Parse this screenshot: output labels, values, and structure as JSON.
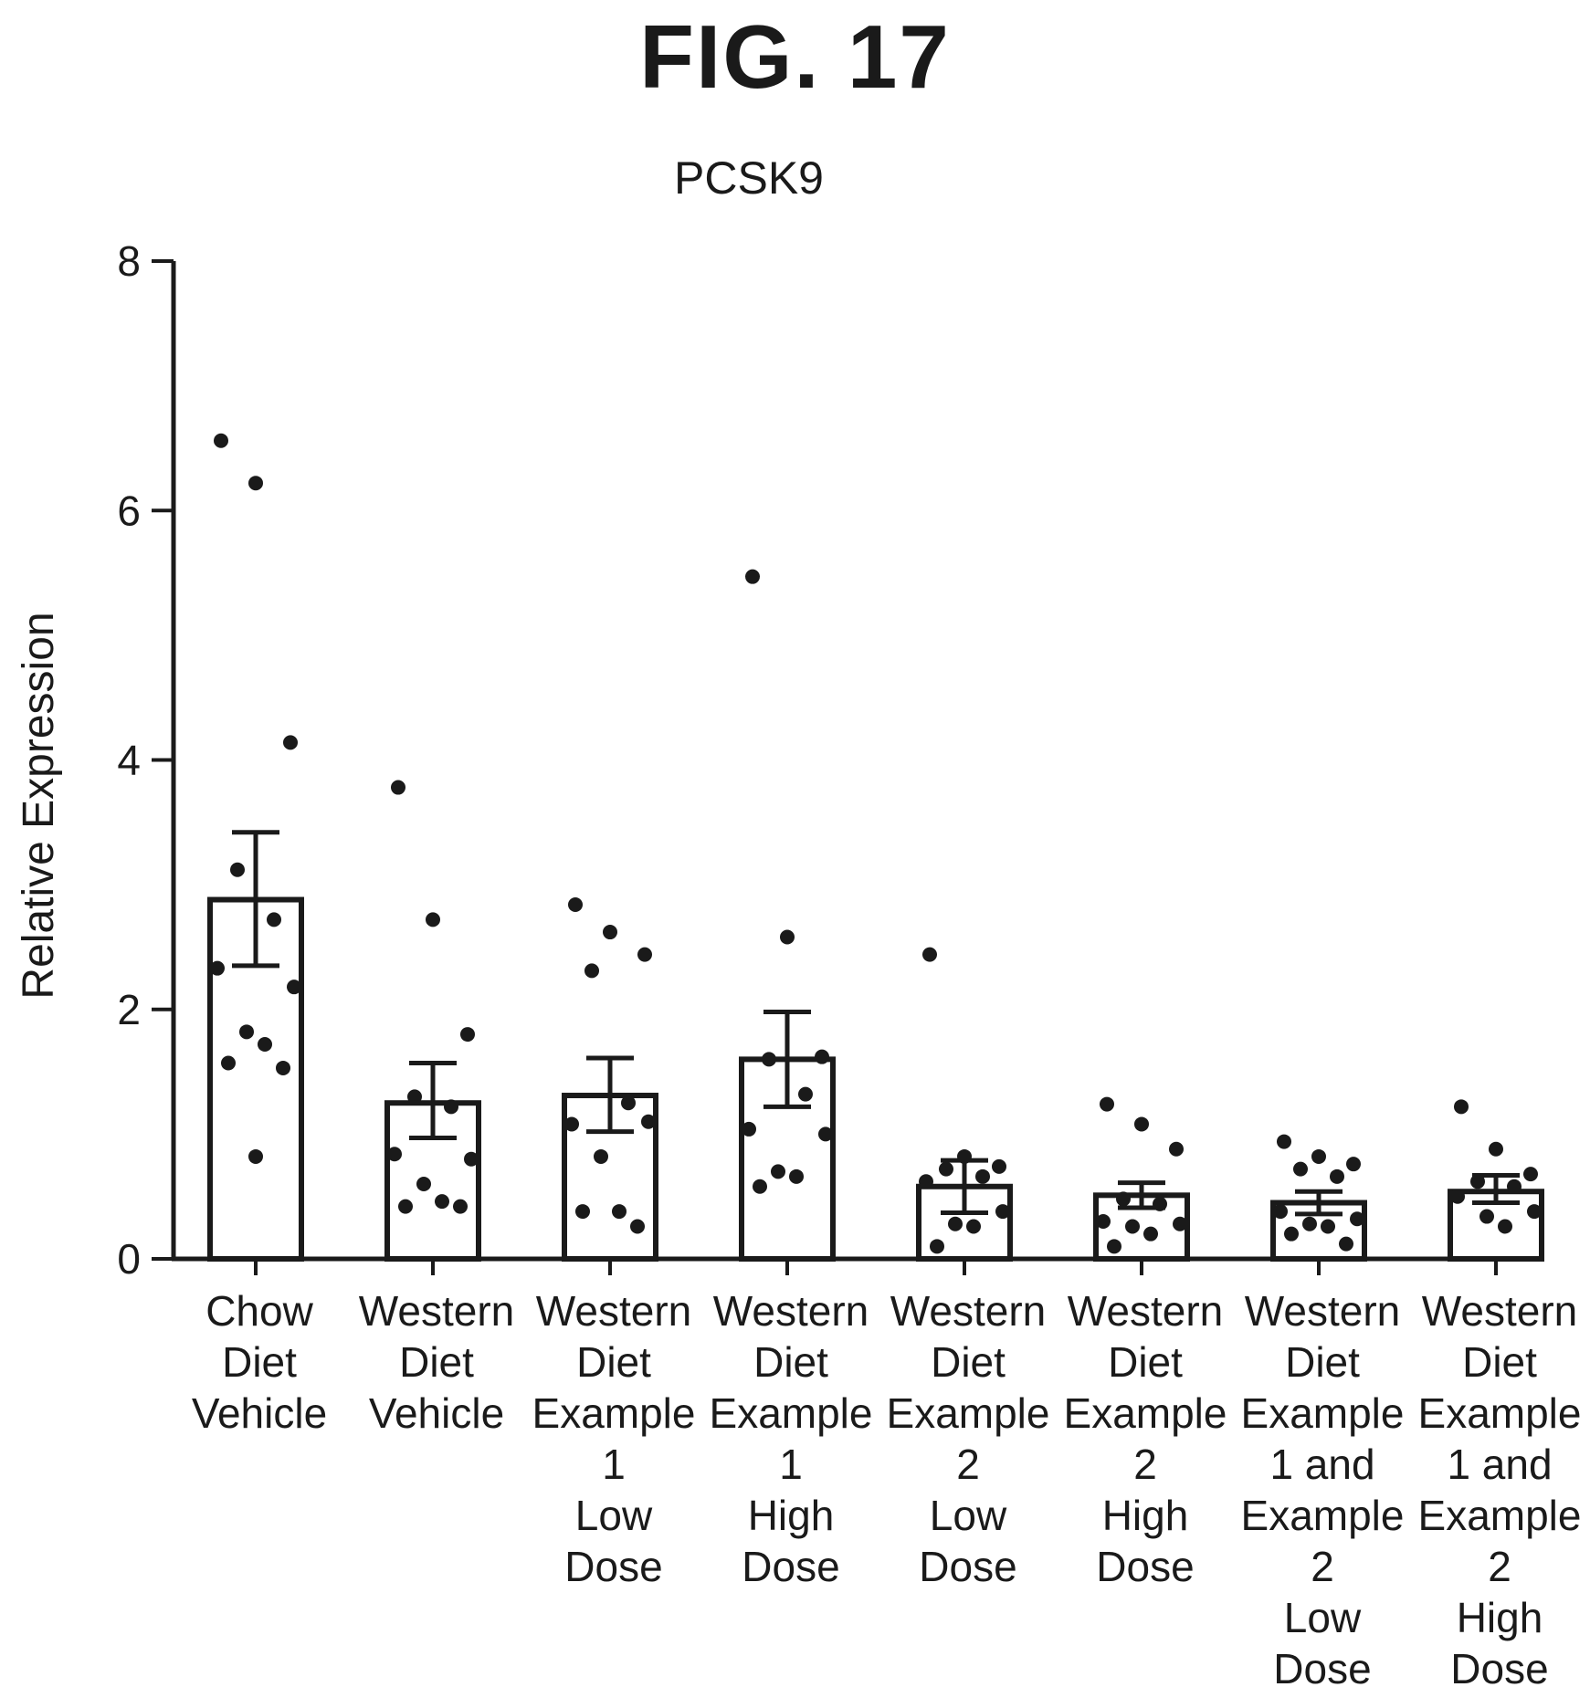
{
  "figure_label": "FIG. 17",
  "chart_data": {
    "type": "bar",
    "title": "PCSK9",
    "xlabel": "",
    "ylabel": "Relative Expression",
    "ylim": [
      0,
      8
    ],
    "yticks": [
      0,
      2,
      4,
      6,
      8
    ],
    "grid": false,
    "legend": "none",
    "categories": [
      "Chow Diet Vehicle",
      "Western Diet Vehicle",
      "Western Diet Example 1 Low Dose",
      "Western Diet Example 1 High Dose",
      "Western Diet Example 2 Low Dose",
      "Western Diet Example 2 High Dose",
      "Western Diet Example 1 and Example 2 Low Dose",
      "Western Diet Example 1 and Example 2 High Dose"
    ],
    "category_lines": [
      [
        "Chow",
        "Diet",
        "Vehicle"
      ],
      [
        "Western",
        "Diet",
        "Vehicle"
      ],
      [
        "Western",
        "Diet",
        "Example",
        "1",
        "Low",
        "Dose"
      ],
      [
        "Western",
        "Diet",
        "Example",
        "1",
        "High",
        "Dose"
      ],
      [
        "Western",
        "Diet",
        "Example",
        "2",
        "Low",
        "Dose"
      ],
      [
        "Western",
        "Diet",
        "Example",
        "2",
        "High",
        "Dose"
      ],
      [
        "Western",
        "Diet",
        "Example",
        "1 and",
        "Example",
        "2",
        "Low",
        "Dose"
      ],
      [
        "Western",
        "Diet",
        "Example",
        "1 and",
        "Example",
        "2",
        "High",
        "Dose"
      ]
    ],
    "values": [
      2.88,
      1.25,
      1.31,
      1.6,
      0.58,
      0.51,
      0.45,
      0.54
    ],
    "error": [
      [
        2.35,
        3.42
      ],
      [
        0.97,
        1.57
      ],
      [
        1.02,
        1.61
      ],
      [
        1.22,
        1.98
      ],
      [
        0.37,
        0.79
      ],
      [
        0.41,
        0.61
      ],
      [
        0.36,
        0.54
      ],
      [
        0.45,
        0.67
      ]
    ],
    "points": [
      [
        6.56,
        6.22,
        4.14,
        3.12,
        2.72,
        2.33,
        2.18,
        1.82,
        1.72,
        1.57,
        1.53,
        0.82
      ],
      [
        3.78,
        2.72,
        1.8,
        1.3,
        1.22,
        0.84,
        0.8,
        0.6,
        0.46,
        0.42,
        0.42
      ],
      [
        2.84,
        2.62,
        2.44,
        2.31,
        1.25,
        1.08,
        1.1,
        0.82,
        0.38,
        0.38,
        0.26
      ],
      [
        5.47,
        2.58,
        1.62,
        1.6,
        1.32,
        1.04,
        1.0,
        0.7,
        0.66,
        0.58
      ],
      [
        2.44,
        0.82,
        0.74,
        0.72,
        0.66,
        0.62,
        0.38,
        0.28,
        0.26,
        0.1
      ],
      [
        1.24,
        1.08,
        0.88,
        0.48,
        0.44,
        0.3,
        0.28,
        0.26,
        0.2,
        0.1
      ],
      [
        0.94,
        0.82,
        0.76,
        0.72,
        0.66,
        0.38,
        0.32,
        0.28,
        0.26,
        0.2,
        0.12
      ],
      [
        1.22,
        0.88,
        0.68,
        0.62,
        0.58,
        0.5,
        0.38,
        0.34,
        0.26
      ]
    ]
  }
}
